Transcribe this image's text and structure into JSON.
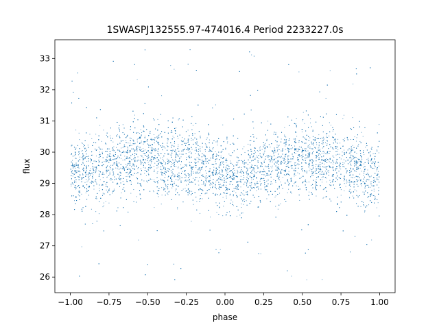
{
  "chart_data": {
    "type": "scatter",
    "title": "1SWASPJ132555.97-474016.4 Period 2233227.0s",
    "xlabel": "phase",
    "ylabel": "flux",
    "xlim": [
      -1.1,
      1.1
    ],
    "ylim": [
      25.5,
      33.6
    ],
    "x_ticks": [
      -1.0,
      -0.75,
      -0.5,
      -0.25,
      0.0,
      0.25,
      0.5,
      0.75,
      1.0
    ],
    "x_tick_labels": [
      "−1.00",
      "−0.75",
      "−0.50",
      "−0.25",
      "0.00",
      "0.25",
      "0.50",
      "0.75",
      "1.00"
    ],
    "y_ticks": [
      26,
      27,
      28,
      29,
      30,
      31,
      32,
      33
    ],
    "y_tick_labels": [
      "26",
      "27",
      "28",
      "29",
      "30",
      "31",
      "32",
      "33"
    ],
    "grid": false,
    "legend": "none",
    "marker_color": "#1f77b4",
    "series": [
      {
        "phase_range": [
          -1.0,
          1.0
        ],
        "flux_baseline_by_phase": [
          {
            "x": -1.0,
            "y": 29.3
          },
          {
            "x": -0.85,
            "y": 29.4
          },
          {
            "x": -0.75,
            "y": 29.6
          },
          {
            "x": -0.6,
            "y": 29.8
          },
          {
            "x": -0.5,
            "y": 29.8
          },
          {
            "x": -0.4,
            "y": 29.7
          },
          {
            "x": -0.25,
            "y": 29.6
          },
          {
            "x": -0.1,
            "y": 29.5
          },
          {
            "x": 0.0,
            "y": 29.3
          },
          {
            "x": 0.1,
            "y": 29.2
          },
          {
            "x": 0.25,
            "y": 29.5
          },
          {
            "x": 0.4,
            "y": 29.7
          },
          {
            "x": 0.5,
            "y": 29.8
          },
          {
            "x": 0.65,
            "y": 29.7
          },
          {
            "x": 0.8,
            "y": 29.5
          },
          {
            "x": 1.0,
            "y": 29.3
          }
        ],
        "typical_scatter": 0.55,
        "outlier_range": [
          25.9,
          33.3
        ]
      }
    ]
  }
}
